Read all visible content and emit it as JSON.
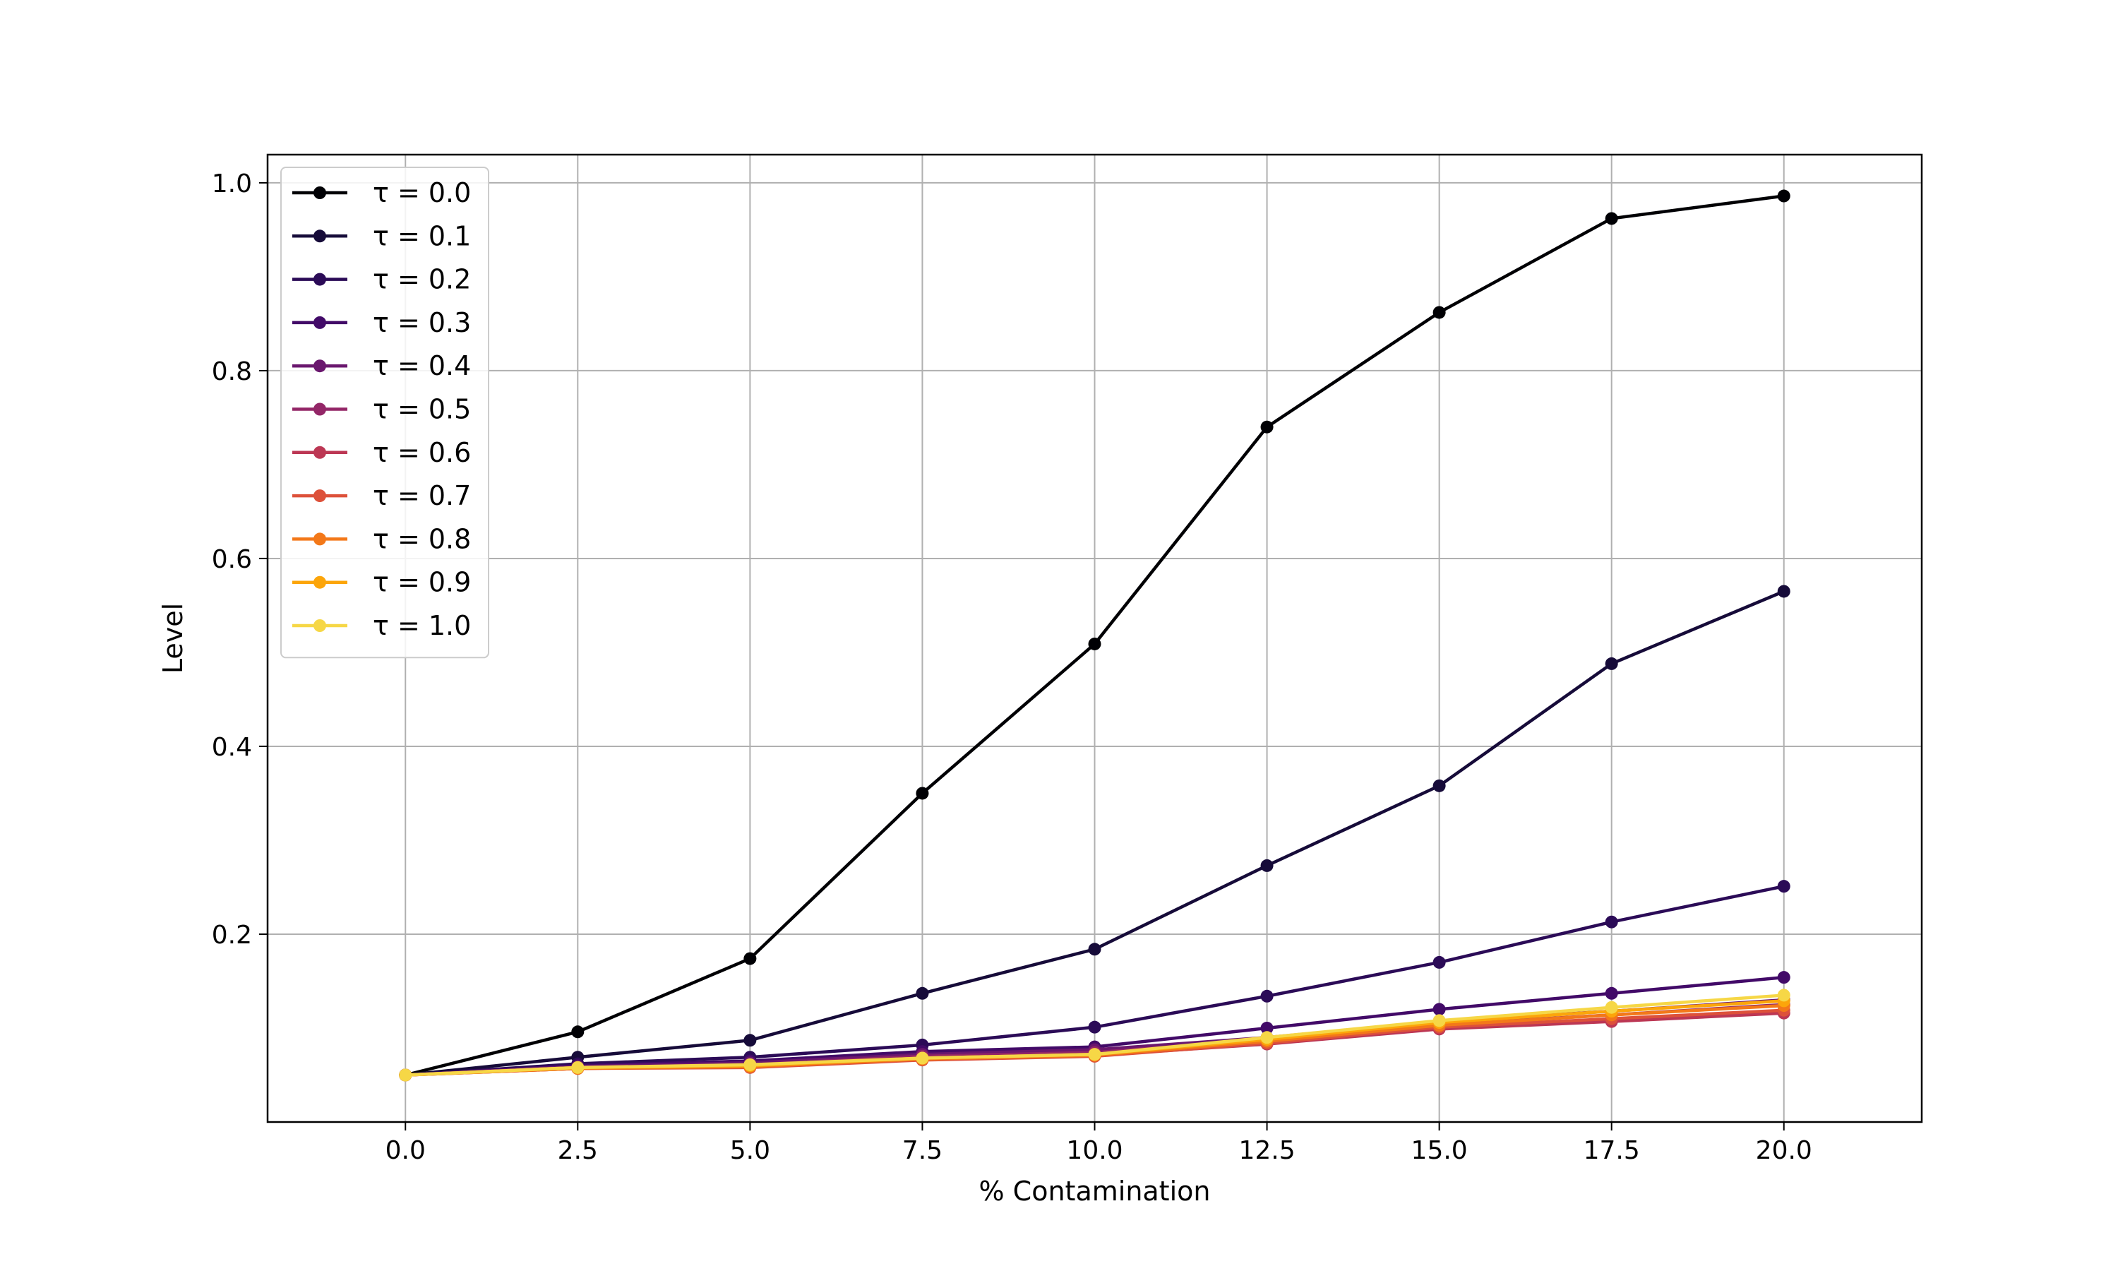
{
  "chart_data": {
    "type": "line",
    "title": "",
    "xlabel": "% Contamination",
    "ylabel": "Level",
    "xlim": [
      -2.0,
      22.0
    ],
    "ylim": [
      -0.0,
      1.03
    ],
    "x": [
      0.0,
      2.5,
      5.0,
      7.5,
      10.0,
      12.5,
      15.0,
      17.5,
      20.0
    ],
    "x_ticks": [
      0.0,
      2.5,
      5.0,
      7.5,
      10.0,
      12.5,
      15.0,
      17.5,
      20.0
    ],
    "x_tick_labels": [
      "0.0",
      "2.5",
      "5.0",
      "7.5",
      "10.0",
      "12.5",
      "15.0",
      "17.5",
      "20.0"
    ],
    "y_ticks": [
      0.2,
      0.4,
      0.6,
      0.8,
      1.0
    ],
    "y_tick_labels": [
      "0.2",
      "0.4",
      "0.6",
      "0.8",
      "1.0"
    ],
    "grid": true,
    "legend_position": "top-left",
    "series": [
      {
        "name": "τ = 0.0",
        "color": "#000004",
        "values": [
          0.05,
          0.096,
          0.174,
          0.35,
          0.509,
          0.74,
          0.862,
          0.962,
          0.986
        ]
      },
      {
        "name": "τ = 0.1",
        "color": "#160b39",
        "values": [
          0.05,
          0.069,
          0.087,
          0.137,
          0.184,
          0.273,
          0.358,
          0.488,
          0.565
        ]
      },
      {
        "name": "τ = 0.2",
        "color": "#2b0b57",
        "values": [
          0.05,
          0.062,
          0.069,
          0.082,
          0.101,
          0.134,
          0.17,
          0.213,
          0.251
        ]
      },
      {
        "name": "τ = 0.3",
        "color": "#420a68",
        "values": [
          0.05,
          0.06,
          0.065,
          0.075,
          0.08,
          0.1,
          0.12,
          0.137,
          0.154
        ]
      },
      {
        "name": "τ = 0.4",
        "color": "#6a176e",
        "values": [
          0.05,
          0.059,
          0.063,
          0.072,
          0.077,
          0.09,
          0.107,
          0.118,
          0.13
        ]
      },
      {
        "name": "τ = 0.5",
        "color": "#932667",
        "values": [
          0.05,
          0.058,
          0.061,
          0.07,
          0.074,
          0.088,
          0.104,
          0.114,
          0.125
        ]
      },
      {
        "name": "τ = 0.6",
        "color": "#bc3754",
        "values": [
          0.05,
          0.057,
          0.059,
          0.067,
          0.071,
          0.083,
          0.099,
          0.107,
          0.116
        ]
      },
      {
        "name": "τ = 0.7",
        "color": "#dd513a",
        "values": [
          0.05,
          0.057,
          0.058,
          0.066,
          0.07,
          0.084,
          0.101,
          0.11,
          0.119
        ]
      },
      {
        "name": "τ = 0.8",
        "color": "#f37819",
        "values": [
          0.05,
          0.057,
          0.059,
          0.067,
          0.071,
          0.086,
          0.103,
          0.114,
          0.124
        ]
      },
      {
        "name": "τ = 0.9",
        "color": "#fca50a",
        "values": [
          0.05,
          0.058,
          0.06,
          0.068,
          0.072,
          0.088,
          0.106,
          0.118,
          0.129
        ]
      },
      {
        "name": "τ = 1.0",
        "color": "#f6d746",
        "values": [
          0.05,
          0.058,
          0.061,
          0.068,
          0.072,
          0.09,
          0.108,
          0.122,
          0.135
        ]
      }
    ]
  }
}
